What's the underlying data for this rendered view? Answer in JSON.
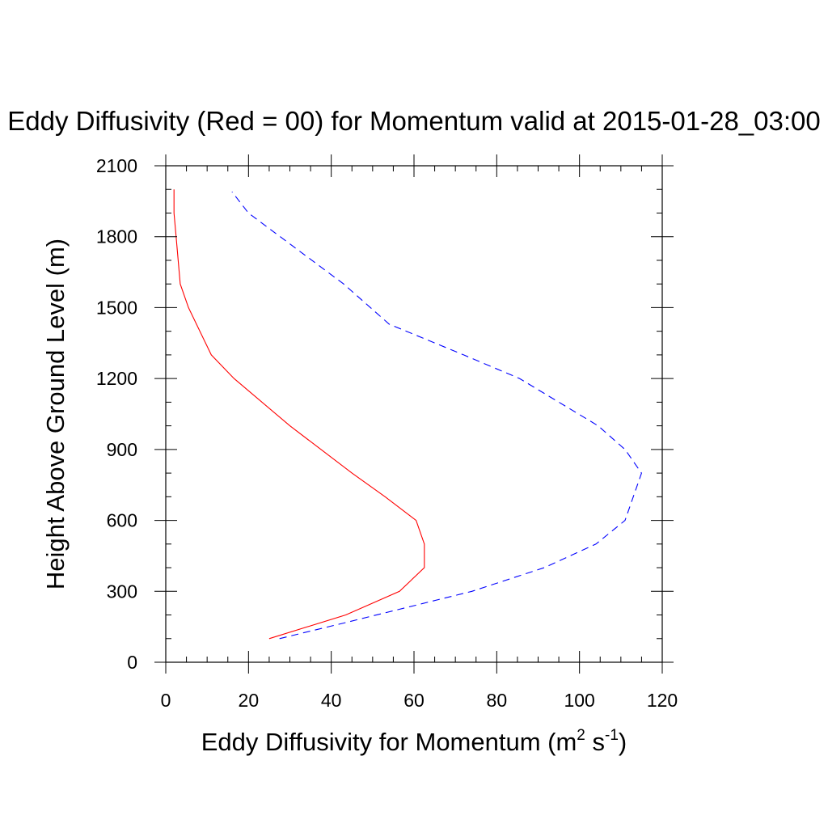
{
  "chart_data": {
    "type": "line",
    "title": "Eddy Diffusivity (Red = 00) for Momentum valid at 2015-01-28_03:00",
    "xlabel": "Eddy Diffusivity for Momentum (m",
    "xlabel_sup1": "2",
    "xlabel_mid": " s",
    "xlabel_sup2": "-1",
    "xlabel_end": ")",
    "ylabel": "Height Above Ground Level (m)",
    "xlim": [
      0,
      120
    ],
    "ylim": [
      0,
      2100
    ],
    "xticks": [
      "0",
      "20",
      "40",
      "60",
      "80",
      "100",
      "120"
    ],
    "yticks": [
      "0",
      "300",
      "600",
      "900",
      "1200",
      "1500",
      "1800",
      "2100"
    ],
    "grid": false,
    "series": [
      {
        "color": "#ff0000",
        "dash": "solid",
        "x": [
          25,
          43.5,
          56.5,
          62.5,
          62.5,
          60.5,
          53,
          45,
          30,
          16.5,
          11,
          5.5,
          3.5,
          2.5,
          2,
          2
        ],
        "y": [
          100,
          200,
          300,
          400,
          500,
          600,
          700,
          800,
          1000,
          1200,
          1300,
          1500,
          1600,
          1800,
          1900,
          2000
        ]
      },
      {
        "color": "#0000ff",
        "dash": "dashed",
        "x": [
          27.5,
          44,
          74,
          91.5,
          104,
          111,
          115,
          111,
          104.5,
          85.5,
          72,
          54,
          43,
          20,
          16
        ],
        "y": [
          100,
          170,
          300,
          400,
          500,
          600,
          800,
          900,
          1000,
          1200,
          1300,
          1430,
          1600,
          1900,
          1990
        ]
      }
    ]
  }
}
